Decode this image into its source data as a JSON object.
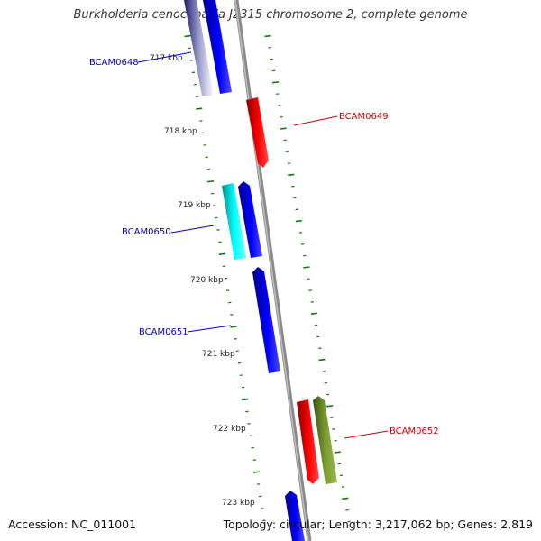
{
  "title": "Burkholderia cenocepacia J2315 chromosome 2, complete genome",
  "footer": {
    "accession": "Accession: NC_011001",
    "summary": "Topology: circular; Length: 3,217,062 bp; Genes: 2,819"
  },
  "colors": {
    "forward_cds": "#0000ee",
    "reverse_cds": "#ee0000",
    "cyan_feature": "#00e5e5",
    "olive_feature": "#6b8e23",
    "backbone": "#888888",
    "gc_ticks": "#0a7a0a",
    "forward_label": "#0000cc",
    "reverse_label": "#cc0000"
  },
  "scale_labels": [
    "717 kbp",
    "718 kbp",
    "719 kbp",
    "720 kbp",
    "721 kbp",
    "722 kbp",
    "723 kbp"
  ],
  "gene_labels": [
    {
      "name": "BCAM0648",
      "strand": "forward"
    },
    {
      "name": "BCAM0649",
      "strand": "reverse"
    },
    {
      "name": "BCAM0650",
      "strand": "forward"
    },
    {
      "name": "BCAM0651",
      "strand": "forward"
    },
    {
      "name": "BCAM0652",
      "strand": "reverse"
    }
  ]
}
